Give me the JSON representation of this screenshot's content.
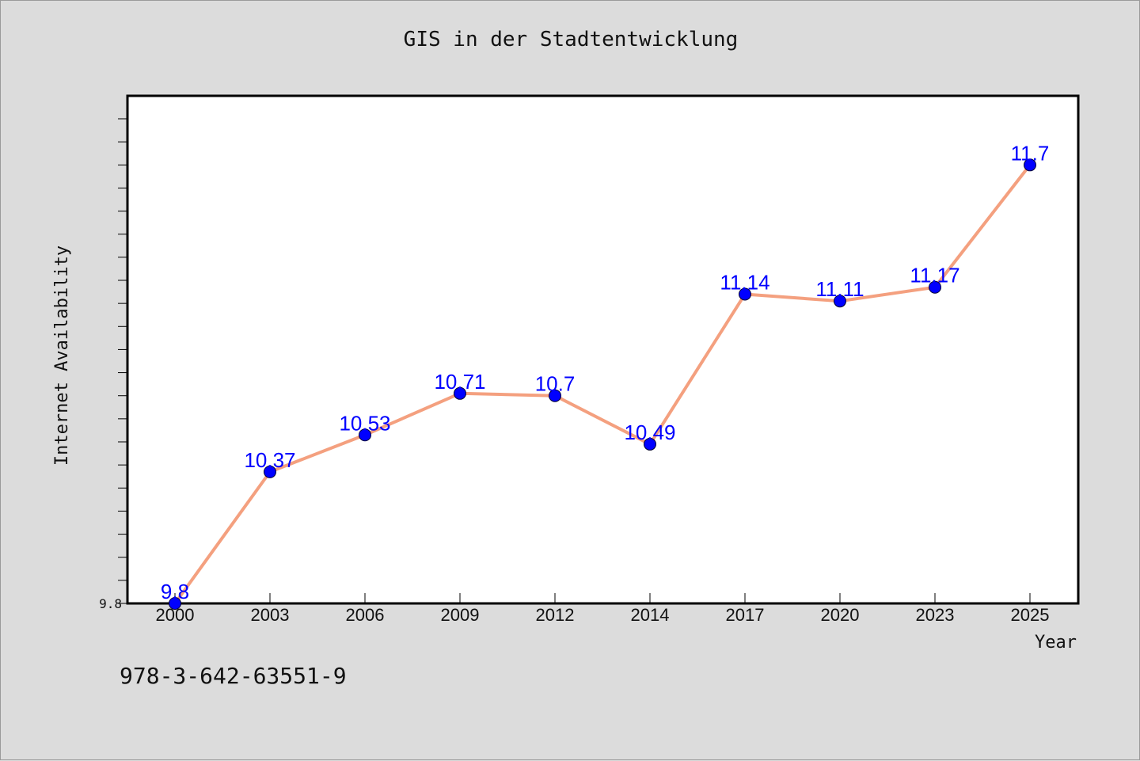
{
  "title": "GIS in der Stadtentwicklung",
  "footer_text": "978-3-642-63551-9",
  "colors": {
    "background": "#dcdcdc",
    "plot_area": "#ffffff",
    "line": "#f4a07f",
    "marker": "#0000ff",
    "label": "#0000ff"
  },
  "chart_data": {
    "type": "line",
    "title": "GIS in der Stadtentwicklung",
    "xlabel": "Year",
    "ylabel": "Internet Availability",
    "categories": [
      "2000",
      "2003",
      "2006",
      "2009",
      "2012",
      "2014",
      "2017",
      "2020",
      "2023",
      "2025"
    ],
    "series": [
      {
        "values": [
          9.8,
          10.37,
          10.53,
          10.71,
          10.7,
          10.49,
          11.14,
          11.11,
          11.17,
          11.7
        ]
      }
    ],
    "data_labels": [
      "9.8",
      "10.37",
      "10.53",
      "10.71",
      "10.7",
      "10.49",
      "11.14",
      "11.11",
      "11.17",
      "11.7"
    ],
    "ylim": [
      9.8,
      11.9
    ],
    "y_tick_labels": [
      "9.8"
    ],
    "y_minor_ticks": 21,
    "grid": false,
    "legend": "none"
  }
}
